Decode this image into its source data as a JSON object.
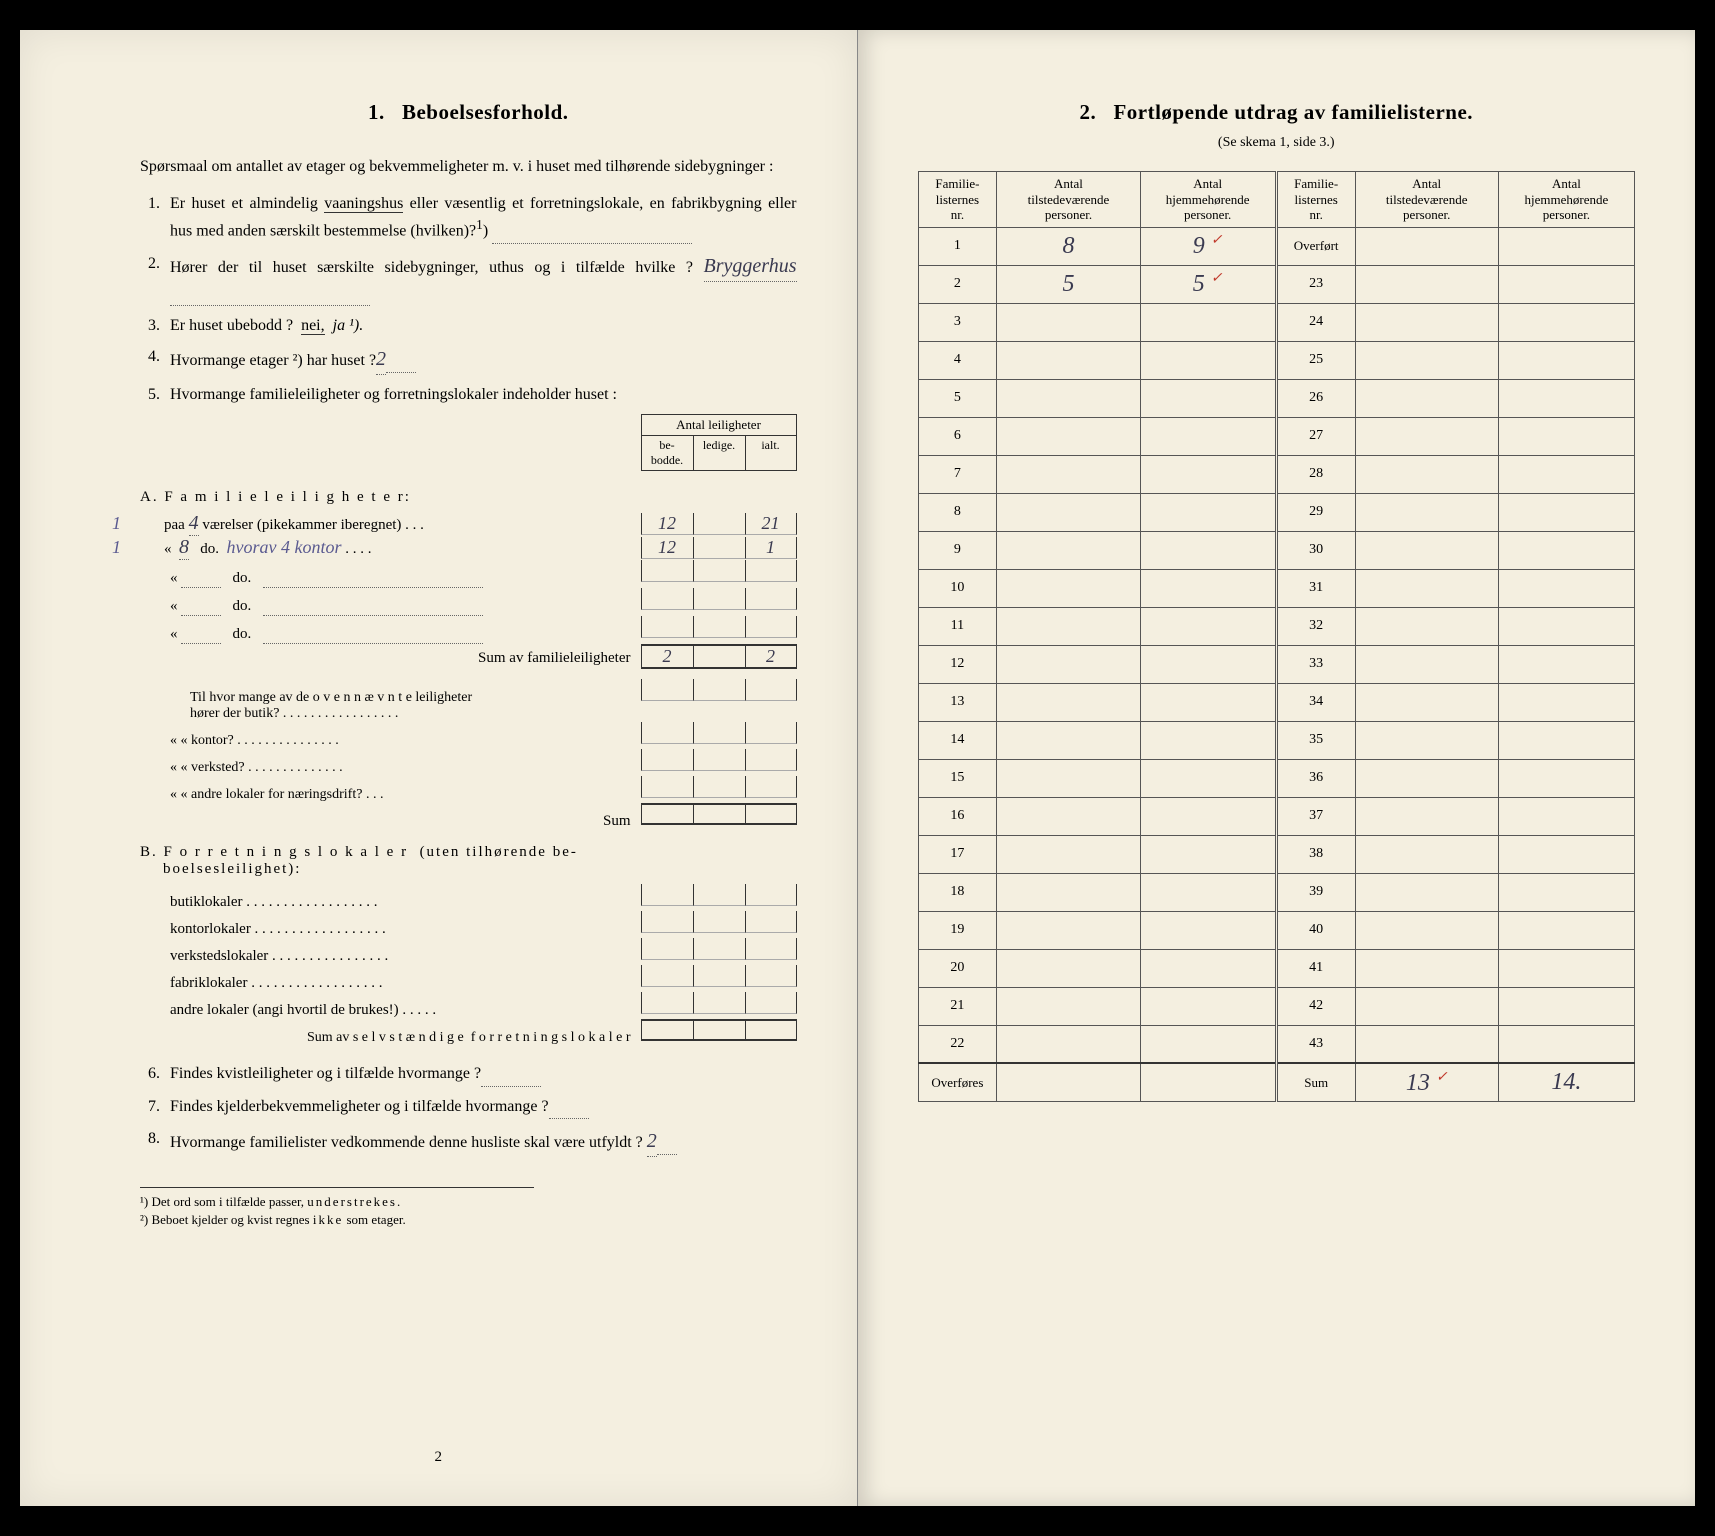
{
  "left": {
    "title_num": "1.",
    "title": "Beboelsesforhold.",
    "intro": "Spørsmaal om antallet av etager og bekvemmeligheter m. v. i huset med tilhørende sidebygninger :",
    "q1": "Er huset et almindelig vaaningshus eller væsentlig et forretningslokale, en fabrikbygning eller hus med anden særskilt bestemmelse (hvilken) ? ¹)",
    "q2_a": "Hører der til huset særskilte sidebygninger, uthus og i tilfælde hvilke ?",
    "q2_hand": "Bryggerhus",
    "q3_a": "Er huset ubebodd ?",
    "q3_b": "nei,",
    "q3_c": "ja ¹).",
    "q4_a": "Hvormange etager ²) har huset ?",
    "q4_hand": "2",
    "q5": "Hvormange familieleiligheter og forretningslokaler indeholder huset :",
    "th_top": "Antal leiligheter",
    "th1": "be-\nbodde.",
    "th2": "ledige.",
    "th3": "ialt.",
    "secA": "A. Familieleiligheter:",
    "rowA1_pre": "paa",
    "rowA1_hand1": "4",
    "rowA1_post": "værelser (pikekammer iberegnet) . . .",
    "rowA1_margin": "1",
    "rowA1_c1": "12",
    "rowA1_c3": "21",
    "rowA2_pre": "«",
    "rowA2_hand1": "8",
    "rowA2_post": "do.",
    "rowA2_note": "hvorav 4 kontor",
    "rowA2_margin": "1",
    "rowA2_c1": "12",
    "rowA2_c3": "1",
    "rowA_do": "do.",
    "sumA": "Sum av familieleiligheter",
    "sumA_c1": "2",
    "sumA_c3": "2",
    "til1": "Til hvor mange av de ovennævnte leiligheter hører der butik? . . . . . . . . . . . . . . . . .",
    "til2": "«       «   kontor? . . . . . . . . . . . . . . .",
    "til3": "«       «   verksted? . . . . . . . . . . . . . .",
    "til4": "«       «   andre lokaler for næringsdrift? . . .",
    "til_sum": "Sum",
    "secB": "B. Forretningslokaler (uten tilhørende beboelsesleilighet):",
    "b1": "butiklokaler . . . . . . . . . . . . . . . . . .",
    "b2": "kontorlokaler . . . . . . . . . . . . . . . . . .",
    "b3": "verkstedslokaler . . . . . . . . . . . . . . . .",
    "b4": "fabriklokaler . . . . . . . . . . . . . . . . . .",
    "b5": "andre lokaler (angi hvortil de brukes!) . . . . .",
    "sumB": "Sum av selvstændige forretningslokaler",
    "q6": "Findes kvistleiligheter og i tilfælde hvormange ?",
    "q7": "Findes kjelderbekvemmeligheter og i tilfælde hvormange ?",
    "q8_a": "Hvormange familielister vedkommende denne husliste skal være utfyldt ?",
    "q8_hand": "2",
    "fn1": "¹) Det ord som i tilfælde passer, understrekes.",
    "fn2": "²) Beboet kjelder og kvist regnes ikke som etager.",
    "pagenum": "2"
  },
  "right": {
    "title_num": "2.",
    "title": "Fortløpende utdrag av familielisterne.",
    "subtitle": "(Se skema 1, side 3.)",
    "th1": "Familie-\nlisternes\nnr.",
    "th2": "Antal\ntilstedeværende\npersoner.",
    "th3": "Antal\nhjemmehørende\npersoner.",
    "overfort": "Overført",
    "overfores": "Overføres",
    "sum": "Sum",
    "rows_left": [
      {
        "n": "1",
        "a": "8",
        "b": "9",
        "tick": true
      },
      {
        "n": "2",
        "a": "5",
        "b": "5",
        "tick": true
      },
      {
        "n": "3",
        "a": "",
        "b": ""
      },
      {
        "n": "4",
        "a": "",
        "b": ""
      },
      {
        "n": "5",
        "a": "",
        "b": ""
      },
      {
        "n": "6",
        "a": "",
        "b": ""
      },
      {
        "n": "7",
        "a": "",
        "b": ""
      },
      {
        "n": "8",
        "a": "",
        "b": ""
      },
      {
        "n": "9",
        "a": "",
        "b": ""
      },
      {
        "n": "10",
        "a": "",
        "b": ""
      },
      {
        "n": "11",
        "a": "",
        "b": ""
      },
      {
        "n": "12",
        "a": "",
        "b": ""
      },
      {
        "n": "13",
        "a": "",
        "b": ""
      },
      {
        "n": "14",
        "a": "",
        "b": ""
      },
      {
        "n": "15",
        "a": "",
        "b": ""
      },
      {
        "n": "16",
        "a": "",
        "b": ""
      },
      {
        "n": "17",
        "a": "",
        "b": ""
      },
      {
        "n": "18",
        "a": "",
        "b": ""
      },
      {
        "n": "19",
        "a": "",
        "b": ""
      },
      {
        "n": "20",
        "a": "",
        "b": ""
      },
      {
        "n": "21",
        "a": "",
        "b": ""
      },
      {
        "n": "22",
        "a": "",
        "b": ""
      }
    ],
    "rows_right": [
      "23",
      "24",
      "25",
      "26",
      "27",
      "28",
      "29",
      "30",
      "31",
      "32",
      "33",
      "34",
      "35",
      "36",
      "37",
      "38",
      "39",
      "40",
      "41",
      "42",
      "43"
    ],
    "sum_a": "13",
    "sum_b": "14."
  },
  "colors": {
    "paper": "#f4efe0",
    "ink": "#222222",
    "hand": "#3a3a50",
    "red": "#c0392b"
  }
}
